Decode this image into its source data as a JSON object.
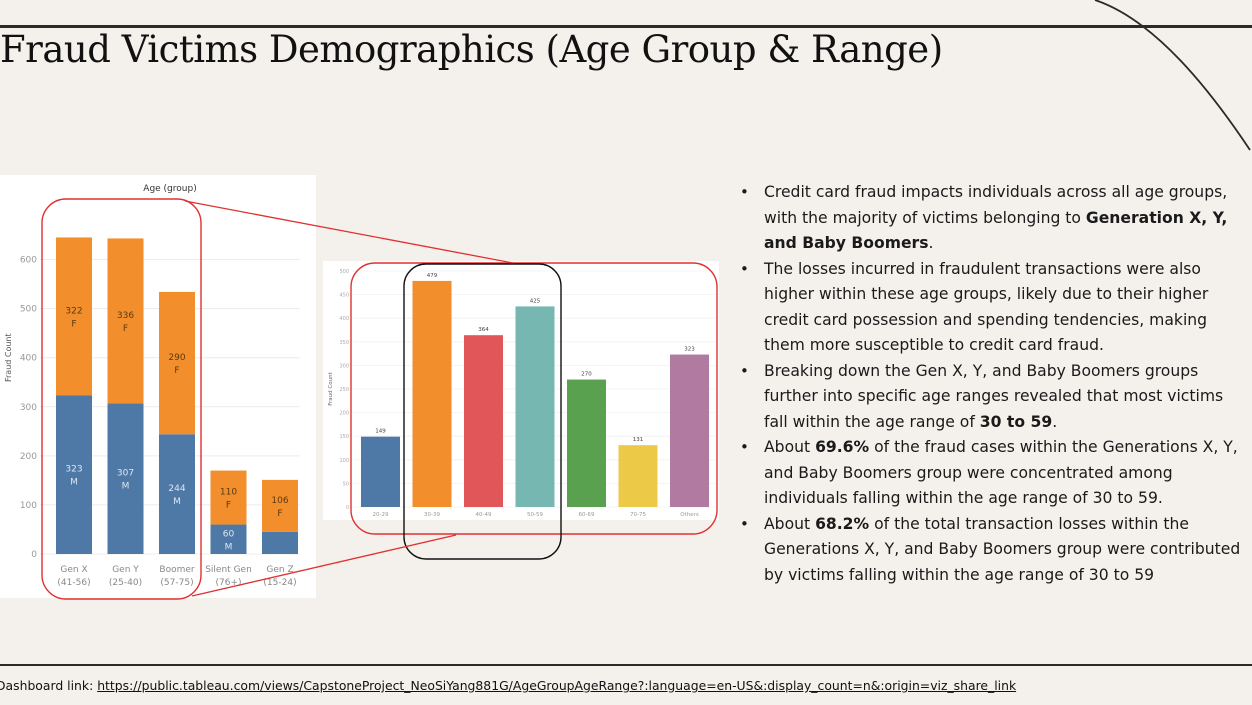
{
  "slide": {
    "title": "Fraud Victims Demographics (Age Group & Range)",
    "footer_label": "Dashboard link:",
    "footer_link": "https://public.tableau.com/views/CapstoneProject_NeoSiYang881G/AgeGroupAgeRange?:language=en-US&:display_count=n&:origin=viz_share_link"
  },
  "bullets": [
    [
      {
        "t": "Credit card fraud impacts individuals across all age groups, with the majority of victims belonging to "
      },
      {
        "t": "Generation X, Y, and Baby Boomers",
        "b": true
      },
      {
        "t": "."
      }
    ],
    [
      {
        "t": "The losses incurred in fraudulent transactions were also higher within these age groups, likely due to their higher credit card possession and spending tendencies, making them more susceptible to credit card fraud."
      }
    ],
    [
      {
        "t": "Breaking down the Gen X, Y, and Baby Boomers groups further into specific age ranges revealed that most victims fall within the age range of "
      },
      {
        "t": "30 to 59",
        "b": true
      },
      {
        "t": "."
      }
    ],
    [
      {
        "t": "About "
      },
      {
        "t": "69.6%",
        "b": true
      },
      {
        "t": " of the fraud cases within the Generations X, Y, and Baby Boomers group were concentrated among individuals falling within the age range of 30 to 59."
      }
    ],
    [
      {
        "t": "About "
      },
      {
        "t": "68.2%",
        "b": true
      },
      {
        "t": " of the total transaction losses within the Generations X, Y, and Baby Boomers group were contributed by victims falling within the age range of 30 to 59"
      }
    ]
  ],
  "colors": {
    "male": "#4e79a7",
    "female": "#f28e2b",
    "highlight_red": "#e03030",
    "highlight_black": "#111111"
  },
  "chart_data": [
    {
      "type": "bar",
      "stacked": true,
      "title": "Age (group)",
      "ylabel": "Fraud Count",
      "ylim": [
        0,
        650
      ],
      "yticks": [
        0,
        100,
        200,
        300,
        400,
        500,
        600
      ],
      "categories": [
        [
          "Gen X",
          "(41-56)"
        ],
        [
          "Gen Y",
          "(25-40)"
        ],
        [
          "Boomer",
          "(57-75)"
        ],
        [
          "Silent Gen",
          "(76+)"
        ],
        [
          "Gen Z",
          "(15-24)"
        ]
      ],
      "series": [
        {
          "name": "M",
          "values": [
            323,
            307,
            244,
            60,
            45
          ],
          "labels": [
            "323\nM",
            "307\nM",
            "244\nM",
            "60\nM",
            ""
          ]
        },
        {
          "name": "F",
          "values": [
            322,
            336,
            290,
            110,
            106
          ],
          "labels": [
            "322\nF",
            "336\nF",
            "290\nF",
            "110\nF",
            "106\nF"
          ]
        }
      ]
    },
    {
      "type": "bar",
      "ylabel": "Fraud Count",
      "ylim": [
        0,
        500
      ],
      "yticks": [
        0,
        50,
        100,
        150,
        200,
        250,
        300,
        350,
        400,
        450,
        500
      ],
      "categories": [
        "20-29",
        "30-39",
        "40-49",
        "50-59",
        "60-69",
        "70-75",
        "Others"
      ],
      "values": [
        149,
        479,
        364,
        425,
        270,
        131,
        323
      ],
      "bar_colors": [
        "#4e79a7",
        "#f28e2b",
        "#e15759",
        "#76b7b2",
        "#59a14f",
        "#edc948",
        "#b07aa1"
      ]
    }
  ]
}
